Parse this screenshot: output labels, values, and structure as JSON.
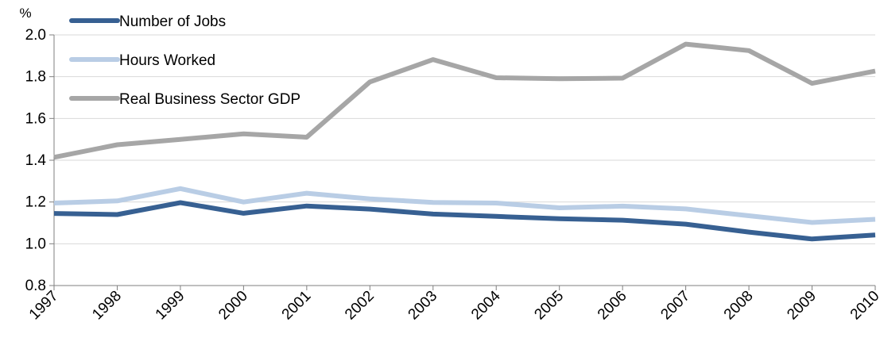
{
  "chart_data": {
    "type": "line",
    "title": "",
    "xlabel": "",
    "ylabel": "%",
    "ylim": [
      0.8,
      2.0
    ],
    "yticks": [
      "0.8",
      "1.0",
      "1.2",
      "1.4",
      "1.6",
      "1.8",
      "2.0"
    ],
    "grid": true,
    "legend_position": "top-left",
    "x": [
      "1997",
      "1998",
      "1999",
      "2000",
      "2001",
      "2002",
      "2003",
      "2004",
      "2005",
      "2006",
      "2007",
      "2008",
      "2009",
      "2010"
    ],
    "series": [
      {
        "name": "Number of Jobs",
        "color": "#376092",
        "values": [
          1.145,
          1.14,
          1.197,
          1.146,
          1.181,
          1.166,
          1.142,
          1.131,
          1.12,
          1.113,
          1.094,
          1.056,
          1.023,
          1.042
        ]
      },
      {
        "name": "Hours Worked",
        "color": "#B9CDE5",
        "values": [
          1.195,
          1.205,
          1.264,
          1.2,
          1.242,
          1.215,
          1.198,
          1.195,
          1.172,
          1.18,
          1.167,
          1.134,
          1.102,
          1.117
        ]
      },
      {
        "name": "Real Business Sector GDP",
        "color": "#A6A6A6",
        "values": [
          1.414,
          1.474,
          1.5,
          1.526,
          1.51,
          1.775,
          1.882,
          1.795,
          1.79,
          1.793,
          1.956,
          1.925,
          1.768,
          1.827
        ]
      }
    ]
  }
}
